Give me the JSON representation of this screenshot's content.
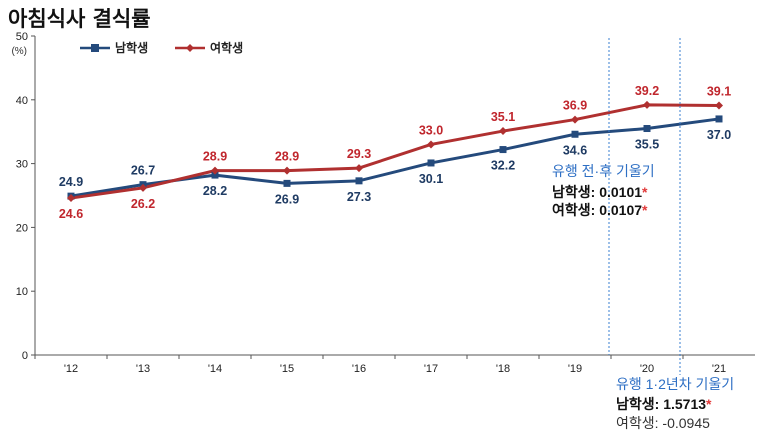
{
  "chart_data": {
    "type": "line",
    "title": "아침식사 결식률",
    "ylabel": "(%)",
    "ylim": [
      0,
      50
    ],
    "yticks": [
      0,
      10,
      20,
      30,
      40,
      50
    ],
    "categories": [
      "'12",
      "'13",
      "'14",
      "'15",
      "'16",
      "'17",
      "'18",
      "'19",
      "'20",
      "'21"
    ],
    "series": [
      {
        "name": "남학생",
        "color": "#244a7c",
        "marker": "square",
        "values": [
          24.9,
          26.7,
          28.2,
          26.9,
          27.3,
          30.1,
          32.2,
          34.6,
          35.5,
          37.0
        ],
        "labels": [
          "24.9",
          "26.7",
          "28.2",
          "26.9",
          "27.3",
          "30.1",
          "32.2",
          "34.6",
          "35.5",
          "37.0"
        ]
      },
      {
        "name": "여학생",
        "color": "#b03030",
        "marker": "diamond",
        "values": [
          24.6,
          26.2,
          28.9,
          28.9,
          29.3,
          33.0,
          35.1,
          36.9,
          39.2,
          39.1
        ],
        "labels": [
          "24.6",
          "26.2",
          "28.9",
          "28.9",
          "29.3",
          "33.0",
          "35.1",
          "36.9",
          "39.2",
          "39.1"
        ]
      }
    ],
    "legend_position": "top-left",
    "grid": false,
    "annotations": {
      "pre_post": {
        "heading": "유행 전·후 기울기",
        "male_label": "남학생: ",
        "male_value": "0.0101",
        "male_star": "*",
        "female_label": "여학생: ",
        "female_value": "0.0107",
        "female_star": "*"
      },
      "years_1_2": {
        "heading": "유행 1·2년차 기울기",
        "male_label": "남학생: ",
        "male_value": "1.5713",
        "male_star": "*",
        "female_label": "여학생: ",
        "female_value": "-0.0945"
      }
    }
  }
}
